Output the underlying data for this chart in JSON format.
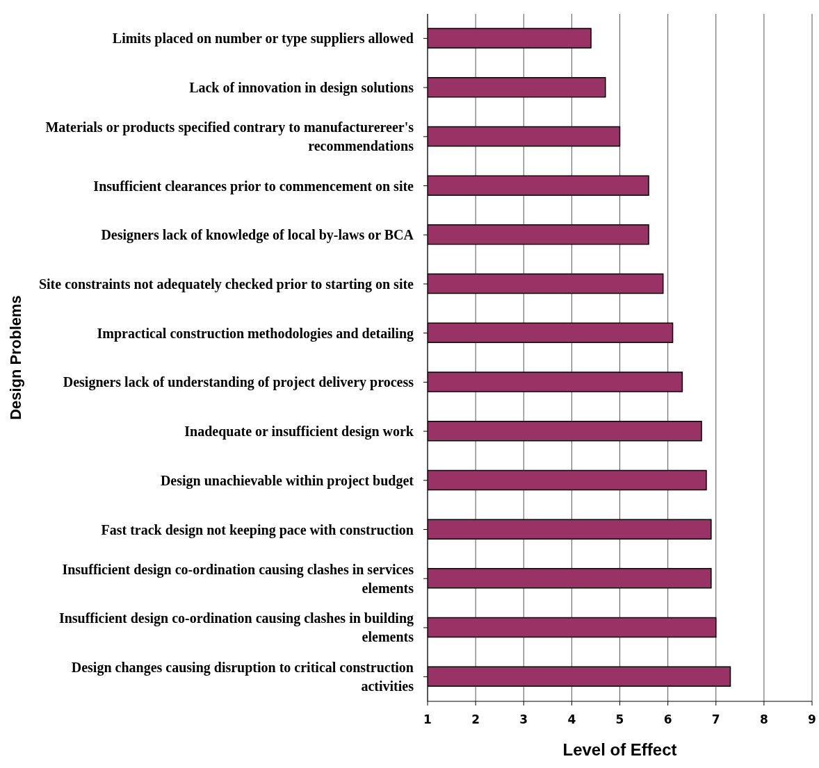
{
  "chart_data": {
    "type": "bar",
    "orientation": "horizontal",
    "xlabel": "Level of Effect",
    "ylabel": "Design Problems",
    "categories": [
      "Limits placed on number or type suppliers allowed",
      "Lack of innovation in design solutions",
      "Materials or products specified contrary to manufacturereer's recommendations",
      "Insufficient clearances prior to commencement on site",
      "Designers lack of knowledge of local by-laws or BCA",
      "Site constraints not adequately checked prior to starting on site",
      "Impractical construction methodologies and detailing",
      "Designers lack of understanding of project delivery process",
      "Inadequate or insufficient design work",
      "Design unachievable within project budget",
      "Fast track design not keeping pace with construction",
      "Insufficient design co-ordination causing clashes in services elements",
      "Insufficient design co-ordination causing clashes in building elements",
      "Design changes causing disruption to critical construction activities"
    ],
    "values": [
      4.4,
      4.7,
      5.0,
      5.6,
      5.6,
      5.9,
      6.1,
      6.3,
      6.7,
      6.8,
      6.9,
      6.9,
      7.0,
      7.3
    ],
    "color": "#993366",
    "xlim": [
      1,
      9
    ],
    "xticks": [
      1,
      2,
      3,
      4,
      5,
      6,
      7,
      8,
      9
    ],
    "grid": "x",
    "legend": false
  }
}
